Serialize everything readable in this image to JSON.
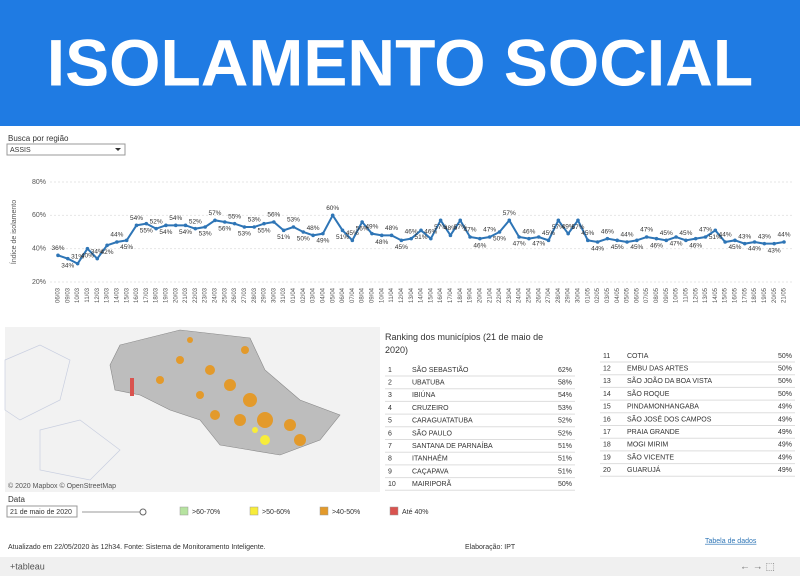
{
  "header": {
    "title": "ISOLAMENTO SOCIAL"
  },
  "filter": {
    "label": "Busca por região",
    "value": "ASSIS"
  },
  "chart_data": {
    "type": "line",
    "y_label": "Índice de isolamento",
    "x": [
      "06/03",
      "09/03",
      "10/03",
      "11/03",
      "12/03",
      "13/03",
      "14/03",
      "15/03",
      "16/03",
      "17/03",
      "18/03",
      "19/03",
      "20/03",
      "21/03",
      "22/03",
      "23/03",
      "24/03",
      "25/03",
      "26/03",
      "27/03",
      "28/03",
      "29/03",
      "30/03",
      "31/03",
      "01/04",
      "02/04",
      "03/04",
      "04/04",
      "05/04",
      "06/04",
      "07/04",
      "08/04",
      "09/04",
      "10/04",
      "11/04",
      "12/04",
      "13/04",
      "14/04",
      "15/04",
      "16/04",
      "17/04",
      "18/04",
      "19/04",
      "20/04",
      "21/04",
      "22/04",
      "23/04",
      "24/04",
      "25/04",
      "26/04",
      "27/04",
      "28/04",
      "29/04",
      "30/04",
      "01/05",
      "02/05",
      "03/05",
      "04/05",
      "05/05",
      "06/05",
      "07/05",
      "08/05",
      "09/05",
      "10/05",
      "11/05",
      "12/05",
      "13/05",
      "14/05",
      "15/05",
      "16/05",
      "17/05",
      "18/05",
      "19/05",
      "20/05",
      "21/05"
    ],
    "series": [
      {
        "name": "ASSIS",
        "color": "#2e75b6",
        "values": [
          36,
          34,
          31,
          40,
          34,
          42,
          44,
          45,
          54,
          55,
          52,
          54,
          54,
          54,
          52,
          53,
          57,
          56,
          55,
          53,
          53,
          55,
          56,
          51,
          53,
          50,
          48,
          49,
          60,
          51,
          45,
          56,
          49,
          48,
          48,
          45,
          46,
          51,
          46,
          57,
          48,
          57,
          47,
          46,
          47,
          50,
          57,
          47,
          46,
          47,
          45,
          57,
          49,
          57,
          45,
          44,
          46,
          45,
          44,
          45,
          47,
          46,
          45,
          47,
          45,
          46,
          47,
          51,
          44,
          45,
          43,
          44,
          43,
          43,
          44
        ],
        "value_labels": [
          "36%",
          "34%",
          "31%",
          "40%",
          "34%",
          "42%",
          "44%",
          "45%",
          "54%",
          "55%",
          "52%",
          "54%",
          "54%",
          "54%",
          "52%",
          "53%",
          "57%",
          "56%",
          "55%",
          "53%",
          "53%",
          "55%",
          "56%",
          "51%",
          "53%",
          "50%",
          "48%",
          "49%",
          "60%",
          "51%",
          "45%",
          "56%",
          "49%",
          "48%",
          "48%",
          "45%",
          "46%",
          "51%",
          "46%",
          "57%",
          "48%",
          "57%",
          "47%",
          "46%",
          "47%",
          "50%",
          "57%",
          "47%",
          "46%",
          "47%",
          "45%",
          "57%",
          "49%",
          "57%",
          "45%",
          "44%",
          "46%",
          "45%",
          "44%",
          "45%",
          "47%",
          "46%",
          "45%",
          "47%",
          "45%",
          "46%",
          "47%",
          "51%",
          "44%",
          "45%",
          "43%",
          "44%",
          "43%",
          "43%",
          "44%"
        ]
      }
    ],
    "ylim": [
      20,
      80
    ],
    "yticks": [
      {
        "value": 20,
        "label": "20%"
      },
      {
        "value": 40,
        "label": "40%"
      },
      {
        "value": 60,
        "label": "60%"
      },
      {
        "value": 80,
        "label": "80%"
      }
    ],
    "grid": true
  },
  "map": {
    "attribution": "© 2020 Mapbox © OpenStreetMap",
    "legend": [
      {
        "label": ">60-70%",
        "color": "#b6e3a0"
      },
      {
        "label": ">50-60%",
        "color": "#f7ec3a"
      },
      {
        "label": ">40-50%",
        "color": "#e39a2b"
      },
      {
        "label": "Até 40%",
        "color": "#d9534f"
      }
    ]
  },
  "ranking": {
    "title": "Ranking dos municípios (21 de maio de 2020)",
    "rows": [
      [
        "1",
        "SÃO SEBASTIÃO",
        "62%"
      ],
      [
        "2",
        "UBATUBA",
        "58%"
      ],
      [
        "3",
        "IBIÚNA",
        "54%"
      ],
      [
        "4",
        "CRUZEIRO",
        "53%"
      ],
      [
        "5",
        "CARAGUATATUBA",
        "52%"
      ],
      [
        "6",
        "SÃO PAULO",
        "52%"
      ],
      [
        "7",
        "SANTANA DE PARNAÍBA",
        "51%"
      ],
      [
        "8",
        "ITANHAÉM",
        "51%"
      ],
      [
        "9",
        "CAÇAPAVA",
        "51%"
      ],
      [
        "10",
        "MAIRIPORÃ",
        "50%"
      ],
      [
        "11",
        "COTIA",
        "50%"
      ],
      [
        "12",
        "EMBU DAS ARTES",
        "50%"
      ],
      [
        "13",
        "SÃO JOÃO DA BOA VISTA",
        "50%"
      ],
      [
        "14",
        "SÃO ROQUE",
        "50%"
      ],
      [
        "15",
        "PINDAMONHANGABA",
        "49%"
      ],
      [
        "16",
        "SÃO JOSÉ DOS CAMPOS",
        "49%"
      ],
      [
        "17",
        "PRAIA GRANDE",
        "49%"
      ],
      [
        "18",
        "MOGI MIRIM",
        "49%"
      ],
      [
        "19",
        "SÃO VICENTE",
        "49%"
      ],
      [
        "20",
        "GUARUJÁ",
        "49%"
      ]
    ]
  },
  "date": {
    "label": "Data",
    "value": "21 de maio de 2020"
  },
  "footer": {
    "updated": "Atualizado em 22/05/2020 às 12h34. Fonte: Sistema de Monitoramento Inteligente.",
    "credit": "Elaboração: IPT",
    "link": "Tabela de dados",
    "brand": "+tableau"
  }
}
